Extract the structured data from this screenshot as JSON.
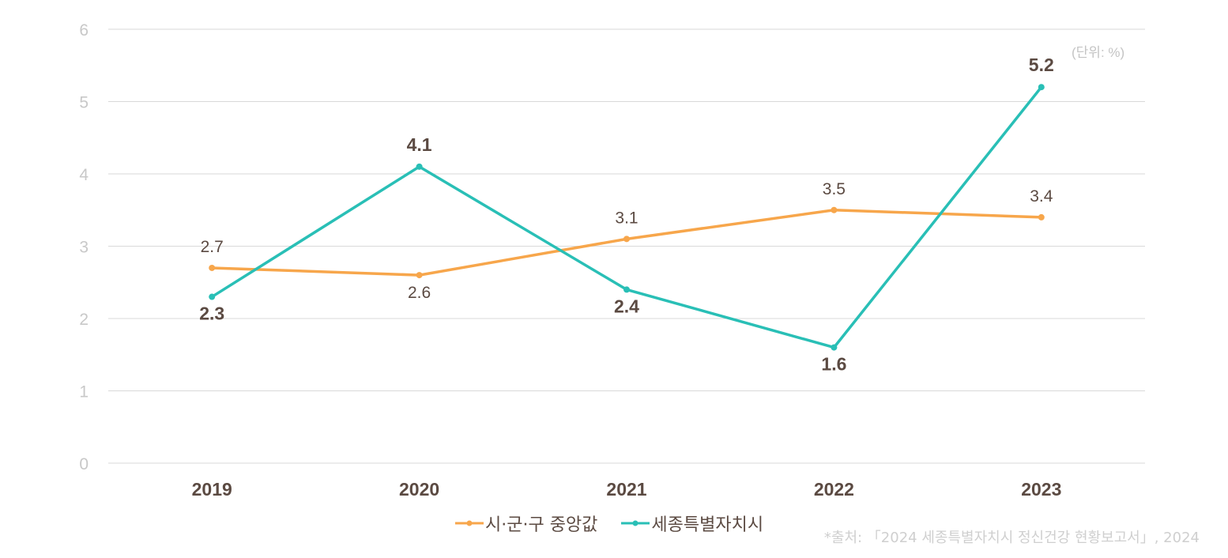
{
  "chart_data": {
    "type": "line",
    "categories": [
      "2019",
      "2020",
      "2021",
      "2022",
      "2023"
    ],
    "series": [
      {
        "name": "시·군·구 중앙값",
        "color": "#f7a64b",
        "values": [
          2.7,
          2.6,
          3.1,
          3.5,
          3.4
        ],
        "labels": [
          "2.7",
          "2.6",
          "3.1",
          "3.5",
          "3.4"
        ],
        "label_positions": [
          "above",
          "below",
          "above",
          "above",
          "above"
        ],
        "bold": false
      },
      {
        "name": "세종특별자치시",
        "color": "#29bfb6",
        "values": [
          2.3,
          4.1,
          2.4,
          1.6,
          5.2
        ],
        "labels": [
          "2.3",
          "4.1",
          "2.4",
          "1.6",
          "5.2"
        ],
        "label_positions": [
          "below",
          "above",
          "below",
          "below",
          "above"
        ],
        "bold": true
      }
    ],
    "ylim": [
      0,
      6
    ],
    "yticks": [
      "0",
      "1",
      "2",
      "3",
      "4",
      "5",
      "6"
    ],
    "grid": true,
    "legend_placement": "bottom",
    "unit_note": "(단위: %)",
    "source_note": "*출처: 「2024 세종특별자치시 정신건강 현황보고서」, 2024"
  }
}
